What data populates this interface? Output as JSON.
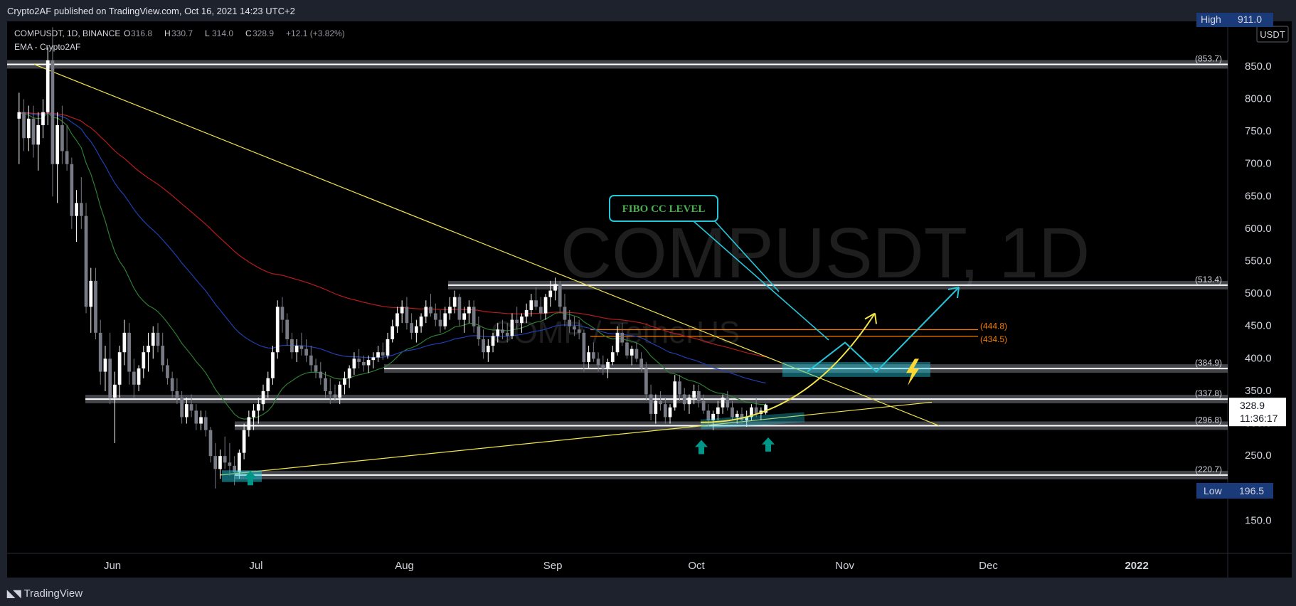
{
  "header": {
    "published": "Crypto2AF published on TradingView.com, Oct 16, 2021 14:23 UTC+2"
  },
  "footer": {
    "brand": "TradingView",
    "logo_icon": "tradingview-logo-icon"
  },
  "legend": {
    "symbol_line": "COMPUSDT, 1D, BINANCE",
    "o_label": "O",
    "o_value": "316.8",
    "h_label": "H",
    "h_value": "330.7",
    "l_label": "L",
    "l_value": "314.0",
    "c_label": "C",
    "c_value": "328.9",
    "change": "+12.1 (+3.82%)",
    "indicator": "EMA - Crypto2AF"
  },
  "watermark": {
    "line1": "COMPUSDT, 1D",
    "line2": "COMP / TetherUS"
  },
  "price_axis": {
    "currency": "USDT",
    "ticks": [
      850,
      800,
      750,
      700,
      650,
      600,
      550,
      500,
      450,
      400,
      350,
      300,
      250,
      150
    ],
    "tick_labels": [
      "850.0",
      "800.0",
      "750.0",
      "700.0",
      "650.0",
      "600.0",
      "550.0",
      "500.0",
      "450.0",
      "400.0",
      "350.0",
      "300.0",
      "250.0",
      "150.0"
    ],
    "high_label": "High",
    "high_value": "911.0",
    "low_label": "Low",
    "low_value": "196.5",
    "last_price": "328.9",
    "countdown": "11:36:17"
  },
  "time_axis": {
    "labels": [
      "Jun",
      "Jul",
      "Aug",
      "Sep",
      "Oct",
      "Nov",
      "Dec",
      "2022"
    ],
    "positions": [
      "2021-06-01",
      "2021-07-01",
      "2021-08-01",
      "2021-09-01",
      "2021-10-01",
      "2021-11-01",
      "2021-12-01",
      "2022-01-01"
    ]
  },
  "annotations": {
    "fibo_label": "FIBO CC LEVEL",
    "levels": [
      {
        "price": 853.7,
        "label": "(853.7)",
        "color": "#d1d4dc"
      },
      {
        "price": 513.4,
        "label": "(513.4)",
        "color": "#d1d4dc"
      },
      {
        "price": 384.9,
        "label": "(384.9)",
        "color": "#d1d4dc"
      },
      {
        "price": 337.8,
        "label": "(337.8)",
        "color": "#d1d4dc"
      },
      {
        "price": 296.8,
        "label": "(296.8)",
        "color": "#d1d4dc"
      },
      {
        "price": 220.7,
        "label": "(220.7)",
        "color": "#d1d4dc"
      }
    ],
    "orange_levels": [
      {
        "price": 444.8,
        "label": "(444.8)"
      },
      {
        "price": 434.5,
        "label": "(434.5)"
      }
    ],
    "arrow_icon": "up-arrow-icon",
    "lightning_icon": "lightning-icon",
    "colors": {
      "cyan": "#26c6da",
      "yellow": "#f2e44a",
      "orange": "#f57c00",
      "teal": "#009688",
      "green_text": "#4caf50"
    }
  },
  "chart_data": {
    "type": "candlestick",
    "title": "COMPUSDT, 1D, BINANCE",
    "ylabel": "USDT",
    "ylim": [
      100,
      920
    ],
    "xlim": [
      "2021-05-10",
      "2022-01-20"
    ],
    "grid": false,
    "candles": [
      [
        "2021-05-12",
        770,
        810,
        700,
        780
      ],
      [
        "2021-05-13",
        780,
        800,
        720,
        740
      ],
      [
        "2021-05-14",
        740,
        790,
        720,
        770
      ],
      [
        "2021-05-15",
        770,
        790,
        710,
        730
      ],
      [
        "2021-05-16",
        730,
        780,
        690,
        760
      ],
      [
        "2021-05-17",
        760,
        800,
        740,
        780
      ],
      [
        "2021-05-18",
        780,
        880,
        760,
        860
      ],
      [
        "2021-05-19",
        860,
        911,
        650,
        700
      ],
      [
        "2021-05-20",
        700,
        780,
        640,
        760
      ],
      [
        "2021-05-21",
        760,
        790,
        700,
        720
      ],
      [
        "2021-05-22",
        720,
        760,
        690,
        700
      ],
      [
        "2021-05-23",
        700,
        710,
        600,
        620
      ],
      [
        "2021-05-24",
        620,
        660,
        580,
        640
      ],
      [
        "2021-05-25",
        640,
        680,
        600,
        620
      ],
      [
        "2021-05-26",
        620,
        640,
        470,
        480
      ],
      [
        "2021-05-27",
        480,
        540,
        440,
        520
      ],
      [
        "2021-05-28",
        520,
        540,
        430,
        440
      ],
      [
        "2021-05-29",
        440,
        460,
        360,
        380
      ],
      [
        "2021-05-30",
        380,
        420,
        350,
        400
      ],
      [
        "2021-05-31",
        400,
        440,
        330,
        340
      ],
      [
        "2021-06-01",
        340,
        380,
        270,
        360
      ],
      [
        "2021-06-02",
        360,
        420,
        340,
        410
      ],
      [
        "2021-06-03",
        410,
        460,
        390,
        440
      ],
      [
        "2021-06-04",
        440,
        455,
        360,
        380
      ],
      [
        "2021-06-05",
        380,
        400,
        340,
        360
      ],
      [
        "2021-06-06",
        360,
        390,
        350,
        385
      ],
      [
        "2021-06-07",
        385,
        420,
        370,
        410
      ],
      [
        "2021-06-08",
        410,
        440,
        380,
        420
      ],
      [
        "2021-06-09",
        420,
        450,
        400,
        440
      ],
      [
        "2021-06-10",
        440,
        455,
        410,
        420
      ],
      [
        "2021-06-11",
        420,
        440,
        380,
        390
      ],
      [
        "2021-06-12",
        390,
        400,
        360,
        370
      ],
      [
        "2021-06-13",
        370,
        380,
        340,
        350
      ],
      [
        "2021-06-14",
        350,
        370,
        330,
        340
      ],
      [
        "2021-06-15",
        340,
        350,
        300,
        310
      ],
      [
        "2021-06-16",
        310,
        340,
        300,
        330
      ],
      [
        "2021-06-17",
        330,
        345,
        310,
        320
      ],
      [
        "2021-06-18",
        320,
        330,
        290,
        300
      ],
      [
        "2021-06-19",
        300,
        320,
        290,
        310
      ],
      [
        "2021-06-20",
        310,
        320,
        280,
        290
      ],
      [
        "2021-06-21",
        290,
        295,
        240,
        250
      ],
      [
        "2021-06-22",
        250,
        270,
        200,
        230
      ],
      [
        "2021-06-23",
        230,
        260,
        215,
        250
      ],
      [
        "2021-06-24",
        250,
        280,
        230,
        240
      ],
      [
        "2021-06-25",
        240,
        270,
        220,
        235
      ],
      [
        "2021-06-26",
        235,
        250,
        205,
        225
      ],
      [
        "2021-06-27",
        225,
        260,
        215,
        255
      ],
      [
        "2021-06-28",
        255,
        300,
        245,
        290
      ],
      [
        "2021-06-29",
        290,
        320,
        280,
        310
      ],
      [
        "2021-06-30",
        310,
        330,
        290,
        320
      ],
      [
        "2021-07-01",
        320,
        340,
        300,
        330
      ],
      [
        "2021-07-02",
        330,
        360,
        320,
        350
      ],
      [
        "2021-07-03",
        350,
        380,
        340,
        370
      ],
      [
        "2021-07-04",
        370,
        420,
        360,
        410
      ],
      [
        "2021-07-05",
        410,
        490,
        400,
        480
      ],
      [
        "2021-07-06",
        480,
        495,
        440,
        460
      ],
      [
        "2021-07-07",
        460,
        470,
        420,
        430
      ],
      [
        "2021-07-08",
        430,
        440,
        400,
        410
      ],
      [
        "2021-07-09",
        410,
        430,
        395,
        420
      ],
      [
        "2021-07-10",
        420,
        440,
        405,
        415
      ],
      [
        "2021-07-11",
        415,
        430,
        395,
        405
      ],
      [
        "2021-07-12",
        405,
        420,
        380,
        390
      ],
      [
        "2021-07-13",
        390,
        400,
        370,
        380
      ],
      [
        "2021-07-14",
        380,
        395,
        360,
        370
      ],
      [
        "2021-07-15",
        370,
        380,
        340,
        350
      ],
      [
        "2021-07-16",
        350,
        370,
        330,
        345
      ],
      [
        "2021-07-17",
        345,
        360,
        335,
        340
      ],
      [
        "2021-07-18",
        340,
        365,
        330,
        360
      ],
      [
        "2021-07-19",
        360,
        380,
        345,
        370
      ],
      [
        "2021-07-20",
        370,
        390,
        355,
        385
      ],
      [
        "2021-07-21",
        385,
        410,
        375,
        400
      ],
      [
        "2021-07-22",
        400,
        415,
        385,
        395
      ],
      [
        "2021-07-23",
        395,
        405,
        380,
        390
      ],
      [
        "2021-07-24",
        390,
        405,
        378,
        398
      ],
      [
        "2021-07-25",
        398,
        410,
        385,
        402
      ],
      [
        "2021-07-26",
        402,
        420,
        395,
        410
      ],
      [
        "2021-07-27",
        410,
        425,
        398,
        405
      ],
      [
        "2021-07-28",
        405,
        440,
        400,
        430
      ],
      [
        "2021-07-29",
        430,
        460,
        425,
        450
      ],
      [
        "2021-07-30",
        450,
        480,
        440,
        470
      ],
      [
        "2021-07-31",
        470,
        490,
        455,
        480
      ],
      [
        "2021-08-01",
        480,
        495,
        445,
        455
      ],
      [
        "2021-08-02",
        455,
        470,
        430,
        440
      ],
      [
        "2021-08-03",
        440,
        460,
        425,
        450
      ],
      [
        "2021-08-04",
        450,
        470,
        440,
        465
      ],
      [
        "2021-08-05",
        465,
        490,
        455,
        480
      ],
      [
        "2021-08-06",
        480,
        500,
        465,
        470
      ],
      [
        "2021-08-07",
        470,
        485,
        450,
        460
      ],
      [
        "2021-08-08",
        460,
        475,
        440,
        450
      ],
      [
        "2021-08-09",
        450,
        480,
        445,
        470
      ],
      [
        "2021-08-10",
        470,
        495,
        460,
        480
      ],
      [
        "2021-08-11",
        480,
        505,
        470,
        495
      ],
      [
        "2021-08-12",
        495,
        500,
        450,
        460
      ],
      [
        "2021-08-13",
        460,
        480,
        440,
        470
      ],
      [
        "2021-08-14",
        470,
        490,
        455,
        480
      ],
      [
        "2021-08-15",
        480,
        490,
        440,
        450
      ],
      [
        "2021-08-16",
        450,
        465,
        420,
        430
      ],
      [
        "2021-08-17",
        430,
        445,
        400,
        410
      ],
      [
        "2021-08-18",
        410,
        430,
        395,
        420
      ],
      [
        "2021-08-19",
        420,
        440,
        410,
        435
      ],
      [
        "2021-08-20",
        435,
        455,
        425,
        445
      ],
      [
        "2021-08-21",
        445,
        460,
        430,
        440
      ],
      [
        "2021-08-22",
        440,
        455,
        425,
        435
      ],
      [
        "2021-08-23",
        435,
        470,
        430,
        460
      ],
      [
        "2021-08-24",
        460,
        480,
        445,
        455
      ],
      [
        "2021-08-25",
        455,
        470,
        440,
        465
      ],
      [
        "2021-08-26",
        465,
        485,
        455,
        475
      ],
      [
        "2021-08-27",
        475,
        500,
        465,
        490
      ],
      [
        "2021-08-28",
        490,
        510,
        475,
        480
      ],
      [
        "2021-08-29",
        480,
        495,
        460,
        470
      ],
      [
        "2021-08-30",
        470,
        500,
        460,
        495
      ],
      [
        "2021-08-31",
        495,
        520,
        480,
        505
      ],
      [
        "2021-09-01",
        505,
        525,
        490,
        515
      ],
      [
        "2021-09-02",
        515,
        520,
        470,
        480
      ],
      [
        "2021-09-03",
        480,
        500,
        450,
        460
      ],
      [
        "2021-09-04",
        460,
        475,
        440,
        450
      ],
      [
        "2021-09-05",
        450,
        465,
        435,
        445
      ],
      [
        "2021-09-06",
        445,
        460,
        430,
        440
      ],
      [
        "2021-09-07",
        440,
        445,
        380,
        395
      ],
      [
        "2021-09-08",
        395,
        420,
        385,
        410
      ],
      [
        "2021-09-09",
        410,
        425,
        395,
        400
      ],
      [
        "2021-09-10",
        400,
        410,
        380,
        390
      ],
      [
        "2021-09-11",
        390,
        405,
        375,
        385
      ],
      [
        "2021-09-12",
        385,
        400,
        370,
        395
      ],
      [
        "2021-09-13",
        395,
        420,
        390,
        410
      ],
      [
        "2021-09-14",
        410,
        450,
        405,
        440
      ],
      [
        "2021-09-15",
        440,
        455,
        420,
        425
      ],
      [
        "2021-09-16",
        425,
        435,
        400,
        405
      ],
      [
        "2021-09-17",
        405,
        420,
        390,
        415
      ],
      [
        "2021-09-18",
        415,
        425,
        395,
        400
      ],
      [
        "2021-09-19",
        400,
        410,
        380,
        385
      ],
      [
        "2021-09-20",
        385,
        395,
        335,
        345
      ],
      [
        "2021-09-21",
        345,
        360,
        305,
        315
      ],
      [
        "2021-09-22",
        315,
        345,
        300,
        335
      ],
      [
        "2021-09-23",
        335,
        350,
        320,
        330
      ],
      [
        "2021-09-24",
        330,
        340,
        300,
        310
      ],
      [
        "2021-09-25",
        310,
        330,
        300,
        325
      ],
      [
        "2021-09-26",
        325,
        375,
        320,
        365
      ],
      [
        "2021-09-27",
        365,
        375,
        335,
        345
      ],
      [
        "2021-09-28",
        345,
        355,
        320,
        330
      ],
      [
        "2021-09-29",
        330,
        345,
        315,
        340
      ],
      [
        "2021-09-30",
        340,
        360,
        330,
        350
      ],
      [
        "2021-10-01",
        350,
        360,
        325,
        335
      ],
      [
        "2021-10-02",
        335,
        345,
        315,
        320
      ],
      [
        "2021-10-03",
        320,
        330,
        295,
        305
      ],
      [
        "2021-10-04",
        305,
        320,
        290,
        315
      ],
      [
        "2021-10-05",
        315,
        335,
        305,
        325
      ],
      [
        "2021-10-06",
        325,
        345,
        315,
        340
      ],
      [
        "2021-10-07",
        340,
        350,
        320,
        325
      ],
      [
        "2021-10-08",
        325,
        335,
        305,
        310
      ],
      [
        "2021-10-09",
        310,
        320,
        300,
        315
      ],
      [
        "2021-10-10",
        315,
        325,
        300,
        305
      ],
      [
        "2021-10-11",
        305,
        320,
        295,
        310
      ],
      [
        "2021-10-12",
        310,
        330,
        305,
        325
      ],
      [
        "2021-10-13",
        325,
        340,
        310,
        315
      ],
      [
        "2021-10-14",
        315,
        325,
        305,
        320
      ],
      [
        "2021-10-15",
        316.8,
        330.7,
        314.0,
        328.9
      ]
    ]
  }
}
